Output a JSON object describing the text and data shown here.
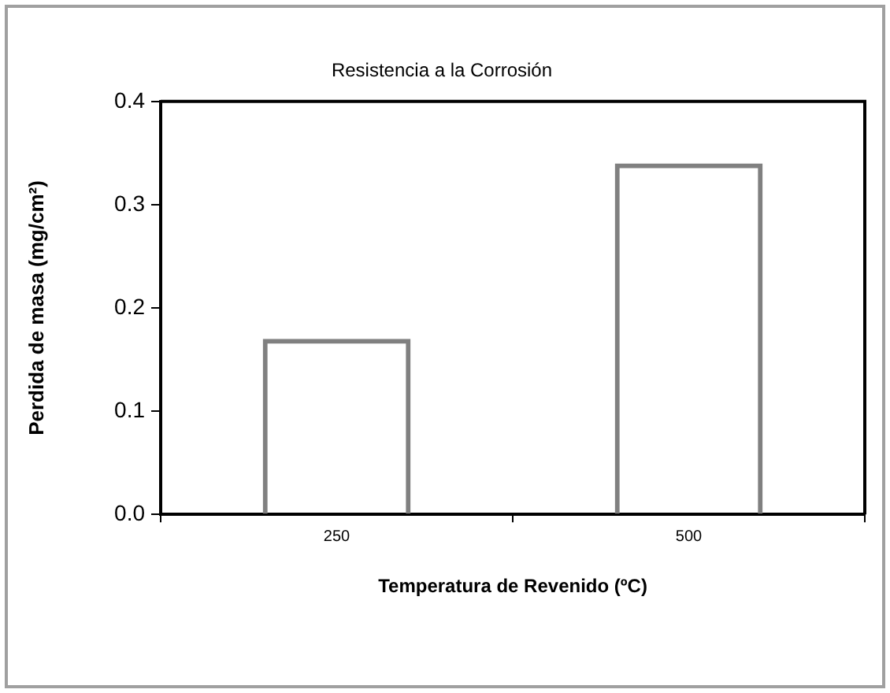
{
  "chart_data": {
    "type": "bar",
    "title": "Resistencia a la Corrosión",
    "xlabel": "Temperatura de Revenido (ºC)",
    "ylabel": "Perdida de masa (mg/cm²)",
    "categories": [
      "250",
      "500"
    ],
    "series": [
      {
        "color": "#808080",
        "values": [
          0.17,
          0.34
        ]
      }
    ],
    "ylim": [
      0,
      0.4
    ],
    "yticks": [
      {
        "value": 0,
        "label": "0.0"
      },
      {
        "value": 0.1,
        "label": "0.1"
      },
      {
        "value": 0.2,
        "label": "0.2"
      },
      {
        "value": 0.3,
        "label": "0.3"
      },
      {
        "value": 0.4,
        "label": "0.4"
      }
    ],
    "grid": false,
    "legend": false
  }
}
